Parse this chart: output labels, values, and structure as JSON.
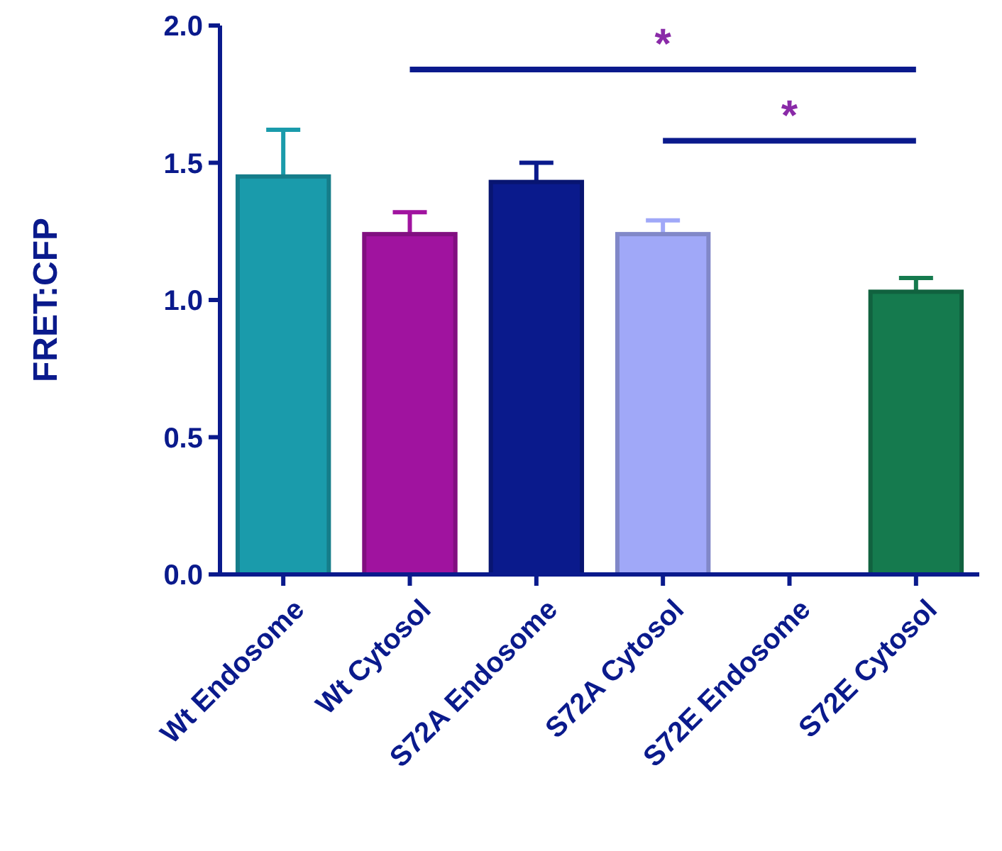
{
  "chart_data": {
    "type": "bar",
    "ylabel": "FRET:CFP",
    "categories": [
      "Wt Endosome",
      "Wt Cytosol",
      "S72A Endosome",
      "S72A Cytosol",
      "S72E Endosome",
      "S72E Cytosol"
    ],
    "values": [
      1.45,
      1.24,
      1.43,
      1.24,
      null,
      1.03
    ],
    "errors": [
      0.17,
      0.08,
      0.07,
      0.05,
      null,
      0.05
    ],
    "colors": [
      "#1a9bab",
      "#a0139f",
      "#0a1a8c",
      "#a0a8f8",
      null,
      "#157a4e"
    ],
    "ylim": [
      0,
      2
    ],
    "yticks": [
      {
        "value": 0,
        "label": "0.0"
      },
      {
        "value": 0.5,
        "label": "0.5"
      },
      {
        "value": 1,
        "label": "1.0"
      },
      {
        "value": 1.5,
        "label": "1.5"
      },
      {
        "value": 2,
        "label": "2.0"
      }
    ],
    "annotations": [
      "*",
      "*"
    ],
    "grid": false
  }
}
